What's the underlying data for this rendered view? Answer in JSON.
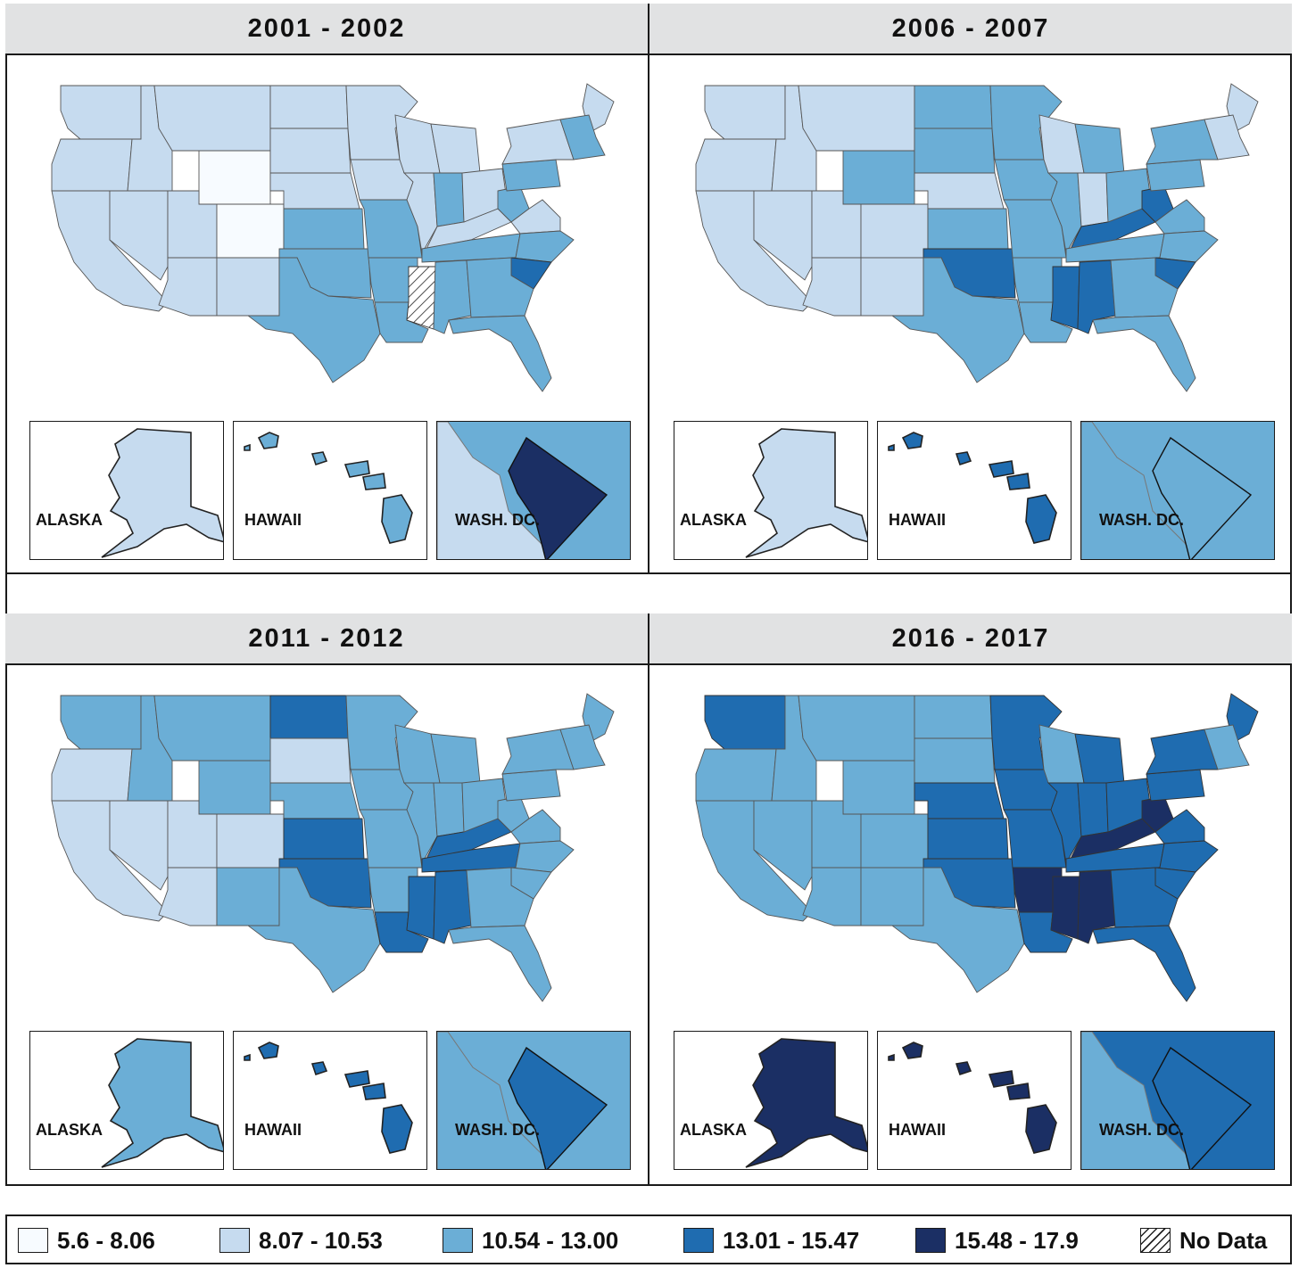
{
  "legend": {
    "items": [
      {
        "label": "5.6 - 8.06",
        "color": "#f7fbff"
      },
      {
        "label": "8.07 - 10.53",
        "color": "#c6dbef"
      },
      {
        "label": "10.54 - 13.00",
        "color": "#6baed6"
      },
      {
        "label": "13.01 - 15.47",
        "color": "#1f6cb0"
      },
      {
        "label": "15.48 - 17.9",
        "color": "#1b2f64"
      },
      {
        "label": "No Data",
        "color": "hatch"
      }
    ]
  },
  "panels": [
    {
      "title": "2001 - 2002",
      "insets": {
        "alaska": "ALASKA",
        "hawaii": "HAWAII",
        "dc": "WASH. DC."
      },
      "fills": {
        "alaska": 1,
        "hawaii": 2,
        "dc": 4,
        "dc_bg": 2,
        "dc_left": 1
      }
    },
    {
      "title": "2006 - 2007",
      "insets": {
        "alaska": "ALASKA",
        "hawaii": "HAWAII",
        "dc": "WASH. DC."
      },
      "fills": {
        "alaska": 1,
        "hawaii": 3,
        "dc": 2,
        "dc_bg": 2,
        "dc_left": 2
      }
    },
    {
      "title": "2011 - 2012",
      "insets": {
        "alaska": "ALASKA",
        "hawaii": "HAWAII",
        "dc": "WASH. DC."
      },
      "fills": {
        "alaska": 2,
        "hawaii": 3,
        "dc": 3,
        "dc_bg": 2,
        "dc_left": 2
      }
    },
    {
      "title": "2016 - 2017",
      "insets": {
        "alaska": "ALASKA",
        "hawaii": "HAWAII",
        "dc": "WASH. DC."
      },
      "fills": {
        "alaska": 4,
        "hawaii": 4,
        "dc": 3,
        "dc_bg": 3,
        "dc_left": 2
      }
    }
  ],
  "map_fills": [
    {
      "WA": 1,
      "OR": 1,
      "CA": 1,
      "ID": 1,
      "NV": 1,
      "MT": 1,
      "WY": 0,
      "UT": 1,
      "AZ": 1,
      "CO": 0,
      "NM": 1,
      "ND": 1,
      "SD": 1,
      "NE": 1,
      "KS": 2,
      "OK": 2,
      "TX": 2,
      "MN": 1,
      "IA": 1,
      "MO": 2,
      "AR": 2,
      "LA": 2,
      "WI": 1,
      "IL": 1,
      "MS": 5,
      "MI": 1,
      "IN": 2,
      "KY": 1,
      "TN": 2,
      "AL": 2,
      "OH": 1,
      "WV": 2,
      "VA": 1,
      "NC": 2,
      "SC": 3,
      "GA": 2,
      "FL": 2,
      "PA": 2,
      "NY": 1,
      "ME": 1,
      "NE_states": 2
    },
    {
      "WA": 1,
      "OR": 1,
      "CA": 1,
      "ID": 1,
      "NV": 1,
      "MT": 1,
      "WY": 2,
      "UT": 1,
      "AZ": 1,
      "CO": 1,
      "NM": 1,
      "ND": 2,
      "SD": 2,
      "NE": 1,
      "KS": 2,
      "OK": 3,
      "TX": 2,
      "MN": 2,
      "IA": 2,
      "MO": 2,
      "AR": 2,
      "LA": 2,
      "WI": 1,
      "IL": 2,
      "MS": 3,
      "MI": 2,
      "IN": 1,
      "KY": 3,
      "TN": 2,
      "AL": 3,
      "OH": 2,
      "WV": 3,
      "VA": 2,
      "NC": 2,
      "SC": 3,
      "GA": 2,
      "FL": 2,
      "PA": 2,
      "NY": 2,
      "ME": 1,
      "NE_states": 1
    },
    {
      "WA": 2,
      "OR": 1,
      "CA": 1,
      "ID": 2,
      "NV": 1,
      "MT": 2,
      "WY": 2,
      "UT": 1,
      "AZ": 1,
      "CO": 1,
      "NM": 2,
      "ND": 3,
      "SD": 1,
      "NE": 2,
      "KS": 3,
      "OK": 3,
      "TX": 2,
      "MN": 2,
      "IA": 2,
      "MO": 2,
      "AR": 2,
      "LA": 3,
      "WI": 2,
      "IL": 2,
      "MS": 3,
      "MI": 2,
      "IN": 2,
      "KY": 3,
      "TN": 3,
      "AL": 3,
      "OH": 2,
      "WV": 2,
      "VA": 2,
      "NC": 2,
      "SC": 2,
      "GA": 2,
      "FL": 2,
      "PA": 2,
      "NY": 2,
      "ME": 2,
      "NE_states": 2
    },
    {
      "WA": 3,
      "OR": 2,
      "CA": 2,
      "ID": 2,
      "NV": 2,
      "MT": 2,
      "WY": 2,
      "UT": 2,
      "AZ": 2,
      "CO": 2,
      "NM": 2,
      "ND": 2,
      "SD": 2,
      "NE": 3,
      "KS": 3,
      "OK": 3,
      "TX": 2,
      "MN": 3,
      "IA": 3,
      "MO": 3,
      "AR": 4,
      "LA": 3,
      "WI": 2,
      "IL": 3,
      "MS": 4,
      "MI": 3,
      "IN": 3,
      "KY": 4,
      "TN": 3,
      "AL": 4,
      "OH": 3,
      "WV": 4,
      "VA": 3,
      "NC": 3,
      "SC": 3,
      "GA": 3,
      "FL": 3,
      "PA": 3,
      "NY": 3,
      "ME": 3,
      "NE_states": 2
    }
  ]
}
